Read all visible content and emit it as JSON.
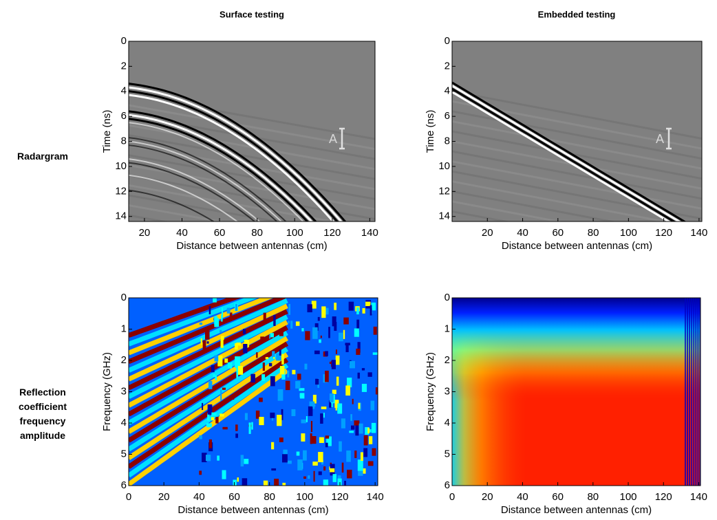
{
  "column_titles": [
    "Surface testing",
    "Embedded testing"
  ],
  "row_labels": [
    "Radargram",
    "Reflection coefficient frequency amplitude"
  ],
  "chart_data": [
    {
      "type": "image",
      "colormap": "gray",
      "xlabel": "Distance between antennas (cm)",
      "ylabel": "Time (ns)",
      "xlim": [
        11.6,
        142.8
      ],
      "ylim": [
        0,
        14.4
      ],
      "xticks": [
        20,
        40,
        60,
        80,
        100,
        120,
        140
      ],
      "yticks": [
        0,
        2,
        4,
        6,
        8,
        10,
        12,
        14
      ],
      "annotation": "A"
    },
    {
      "type": "image",
      "colormap": "gray",
      "xlabel": "Distance between antennas (cm)",
      "ylabel": "Time (ns)",
      "xlim": [
        0,
        141.6
      ],
      "ylim": [
        0,
        14.4
      ],
      "xticks": [
        20,
        40,
        60,
        80,
        100,
        120,
        140
      ],
      "yticks": [
        0,
        2,
        4,
        6,
        8,
        10,
        12,
        14
      ],
      "annotation": "A"
    },
    {
      "type": "image",
      "colormap": "jet",
      "xlabel": "Distance between antennas (cm)",
      "ylabel": "Frequency (GHz)",
      "xlim": [
        0,
        141.5
      ],
      "ylim": [
        0,
        6
      ],
      "xticks": [
        0,
        20,
        40,
        60,
        80,
        100,
        120,
        140
      ],
      "yticks": [
        0,
        1,
        2,
        3,
        4,
        5,
        6
      ]
    },
    {
      "type": "image",
      "colormap": "jet",
      "xlabel": "Distance between antennas (cm)",
      "ylabel": "Frequency (GHz)",
      "xlim": [
        0,
        141
      ],
      "ylim": [
        0,
        6
      ],
      "xticks": [
        0,
        20,
        40,
        60,
        80,
        100,
        120,
        140
      ],
      "yticks": [
        0,
        1,
        2,
        3,
        4,
        5,
        6
      ]
    }
  ]
}
